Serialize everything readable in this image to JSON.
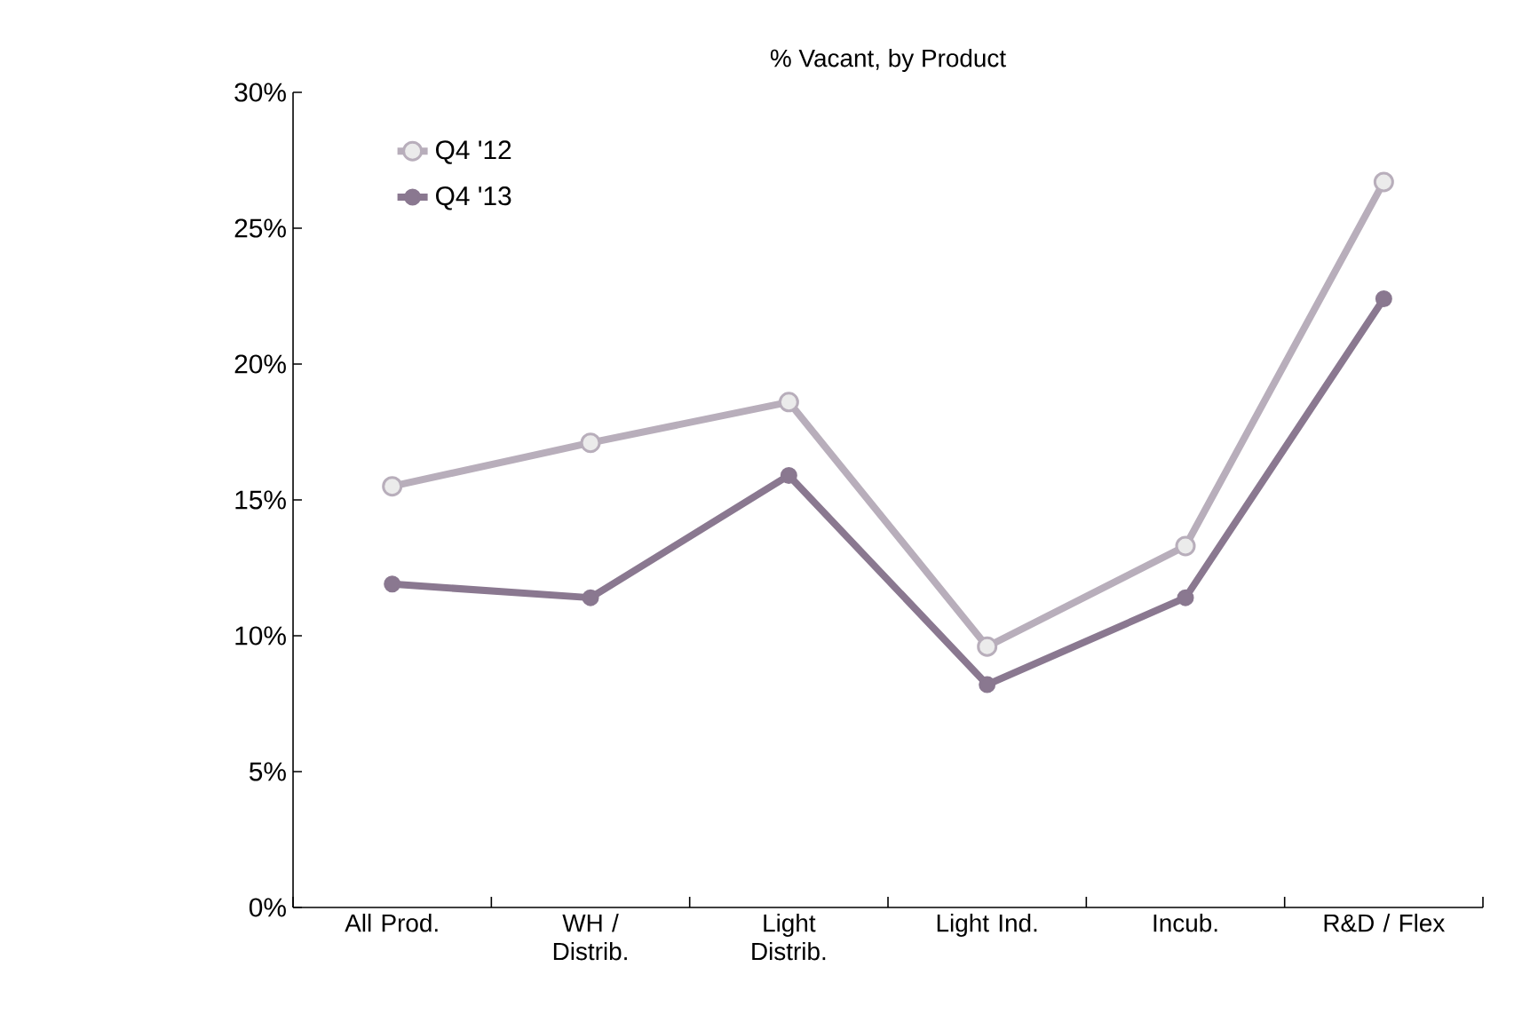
{
  "chart_data": {
    "type": "line",
    "title": "% Vacant, by Product",
    "categories": [
      "All Prod.",
      "WH / Distrib.",
      "Light Distrib.",
      "Light Ind.",
      "Incub.",
      "R&D / Flex"
    ],
    "series": [
      {
        "name": "Q4 '12",
        "color": "#b8aebb",
        "values": [
          15.5,
          17.1,
          18.6,
          9.6,
          13.3,
          26.7
        ]
      },
      {
        "name": "Q4 '13",
        "color": "#8a7890",
        "values": [
          11.9,
          11.4,
          15.9,
          8.2,
          11.4,
          22.4
        ]
      }
    ],
    "ylim": [
      0,
      30
    ],
    "yticks": [
      {
        "value": 0,
        "label": "0%"
      },
      {
        "value": 5,
        "label": "5%"
      },
      {
        "value": 10,
        "label": "10%"
      },
      {
        "value": 15,
        "label": "15%"
      },
      {
        "value": 20,
        "label": "20%"
      },
      {
        "value": 25,
        "label": "25%"
      },
      {
        "value": 30,
        "label": "30%"
      }
    ],
    "grid": false,
    "legend": "top left",
    "marker": "circle",
    "line_style": "solid"
  }
}
